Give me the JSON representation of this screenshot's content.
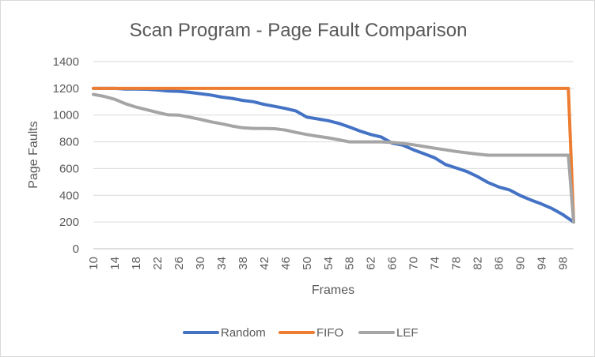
{
  "chart_data": {
    "type": "line",
    "title": "Scan Program - Page Fault Comparison",
    "xlabel": "Frames",
    "ylabel": "Page Faults",
    "ylim": [
      0,
      1400
    ],
    "yticks": [
      0,
      200,
      400,
      600,
      800,
      1000,
      1200,
      1400
    ],
    "xticks": [
      10,
      14,
      18,
      22,
      26,
      30,
      34,
      38,
      42,
      46,
      50,
      54,
      58,
      62,
      66,
      70,
      74,
      78,
      82,
      86,
      90,
      94,
      98
    ],
    "x_range": [
      10,
      100
    ],
    "grid": true,
    "legend_position": "bottom",
    "series": [
      {
        "name": "Random",
        "color": "#4472C4",
        "points": [
          [
            10,
            1200
          ],
          [
            12,
            1200
          ],
          [
            14,
            1200
          ],
          [
            16,
            1195
          ],
          [
            18,
            1195
          ],
          [
            20,
            1193
          ],
          [
            22,
            1188
          ],
          [
            24,
            1180
          ],
          [
            26,
            1178
          ],
          [
            28,
            1170
          ],
          [
            30,
            1160
          ],
          [
            32,
            1150
          ],
          [
            34,
            1135
          ],
          [
            36,
            1125
          ],
          [
            38,
            1110
          ],
          [
            40,
            1100
          ],
          [
            42,
            1080
          ],
          [
            44,
            1065
          ],
          [
            46,
            1050
          ],
          [
            48,
            1030
          ],
          [
            50,
            985
          ],
          [
            52,
            972
          ],
          [
            54,
            958
          ],
          [
            56,
            938
          ],
          [
            58,
            910
          ],
          [
            60,
            880
          ],
          [
            62,
            855
          ],
          [
            64,
            835
          ],
          [
            66,
            790
          ],
          [
            68,
            775
          ],
          [
            70,
            740
          ],
          [
            72,
            710
          ],
          [
            74,
            680
          ],
          [
            76,
            630
          ],
          [
            78,
            605
          ],
          [
            80,
            578
          ],
          [
            82,
            540
          ],
          [
            84,
            495
          ],
          [
            86,
            462
          ],
          [
            88,
            440
          ],
          [
            90,
            398
          ],
          [
            92,
            365
          ],
          [
            94,
            335
          ],
          [
            96,
            300
          ],
          [
            98,
            255
          ],
          [
            100,
            200
          ]
        ]
      },
      {
        "name": "FIFO",
        "color": "#ED7D31",
        "points": [
          [
            10,
            1200
          ],
          [
            20,
            1200
          ],
          [
            30,
            1200
          ],
          [
            40,
            1200
          ],
          [
            50,
            1200
          ],
          [
            60,
            1200
          ],
          [
            70,
            1200
          ],
          [
            80,
            1200
          ],
          [
            90,
            1200
          ],
          [
            99,
            1200
          ],
          [
            100,
            200
          ]
        ]
      },
      {
        "name": "LEF",
        "color": "#A5A5A5",
        "points": [
          [
            10,
            1155
          ],
          [
            12,
            1140
          ],
          [
            14,
            1118
          ],
          [
            16,
            1085
          ],
          [
            18,
            1060
          ],
          [
            20,
            1040
          ],
          [
            22,
            1020
          ],
          [
            24,
            1002
          ],
          [
            26,
            1000
          ],
          [
            28,
            985
          ],
          [
            30,
            968
          ],
          [
            32,
            950
          ],
          [
            34,
            935
          ],
          [
            36,
            918
          ],
          [
            38,
            905
          ],
          [
            40,
            900
          ],
          [
            42,
            900
          ],
          [
            44,
            898
          ],
          [
            46,
            888
          ],
          [
            48,
            870
          ],
          [
            50,
            855
          ],
          [
            52,
            842
          ],
          [
            54,
            830
          ],
          [
            56,
            815
          ],
          [
            58,
            800
          ],
          [
            60,
            800
          ],
          [
            62,
            800
          ],
          [
            64,
            800
          ],
          [
            66,
            795
          ],
          [
            68,
            788
          ],
          [
            70,
            778
          ],
          [
            72,
            765
          ],
          [
            74,
            752
          ],
          [
            76,
            740
          ],
          [
            78,
            728
          ],
          [
            80,
            718
          ],
          [
            82,
            708
          ],
          [
            84,
            700
          ],
          [
            86,
            700
          ],
          [
            88,
            700
          ],
          [
            90,
            700
          ],
          [
            92,
            700
          ],
          [
            94,
            700
          ],
          [
            96,
            700
          ],
          [
            98,
            700
          ],
          [
            99,
            700
          ],
          [
            100,
            200
          ]
        ]
      }
    ]
  }
}
